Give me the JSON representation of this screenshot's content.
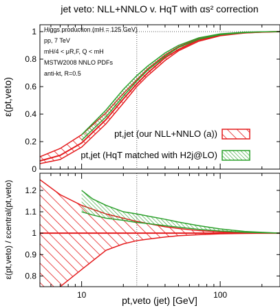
{
  "chart_data": [
    {
      "type": "area",
      "title": "jet veto: NLL+NNLO v. HqT with αs² correction",
      "ylabel": "ε(pt,veto)",
      "xscale": "log",
      "xlim": [
        5,
        270
      ],
      "ylim": [
        0,
        1.05
      ],
      "yticks": [
        "0",
        "0.2",
        "0.4",
        "0.6",
        "0.8",
        "1"
      ],
      "grid": "dotted reference lines at x = 25 GeV and y = 1",
      "annotations": [
        "Higgs production (mH = 125 GeV)",
        "pp, 7 TeV",
        "mH/4 < μR,F, Q < mH",
        "MSTW2008 NNLO PDFs",
        "anti-kt, R=0.5"
      ],
      "legend_position": "bottom-right",
      "series": [
        {
          "name": "pt,jet (our NLL+NNLO (a))",
          "color": "#e41a1c",
          "style": "red hatched band",
          "x": [
            5,
            7,
            10,
            15,
            20,
            25,
            30,
            40,
            50,
            70,
            100,
            150,
            200,
            270
          ],
          "central": [
            0.06,
            0.1,
            0.19,
            0.36,
            0.51,
            0.62,
            0.7,
            0.81,
            0.87,
            0.94,
            0.975,
            0.992,
            0.997,
            1.0
          ],
          "lower": [
            0.04,
            0.07,
            0.16,
            0.33,
            0.48,
            0.6,
            0.68,
            0.79,
            0.86,
            0.93,
            0.97,
            0.99,
            0.996,
            1.0
          ],
          "upper": [
            0.09,
            0.15,
            0.25,
            0.41,
            0.55,
            0.65,
            0.73,
            0.83,
            0.89,
            0.95,
            0.98,
            0.994,
            0.998,
            1.0
          ]
        },
        {
          "name": "pt,jet (HqT matched with H2j@LO)",
          "color": "#2ca02c",
          "style": "green hatched band",
          "x": [
            10,
            15,
            20,
            25,
            30,
            40,
            50,
            70,
            100,
            150,
            200,
            270
          ],
          "lower": [
            0.21,
            0.38,
            0.53,
            0.64,
            0.72,
            0.82,
            0.885,
            0.945,
            0.978,
            0.993,
            0.998,
            1.0
          ],
          "upper": [
            0.25,
            0.43,
            0.58,
            0.68,
            0.75,
            0.845,
            0.9,
            0.955,
            0.984,
            0.996,
            0.999,
            1.0
          ]
        }
      ]
    },
    {
      "type": "area",
      "xlabel": "pt,veto (jet) [GeV]",
      "ylabel": "ε(pt,veto) / εcentral(pt,veto)",
      "xscale": "log",
      "xlim": [
        5,
        270
      ],
      "ylim": [
        0.75,
        1.28
      ],
      "xticks": [
        "10",
        "100"
      ],
      "yticks": [
        "0.8",
        "0.9",
        "1",
        "1.1",
        "1.2"
      ],
      "grid": "dotted reference lines at x = 25 GeV and y = 1",
      "series": [
        {
          "name": "pt,jet (our NLL+NNLO (a))",
          "color": "#e41a1c",
          "style": "red hatched band",
          "x": [
            5,
            7,
            10,
            15,
            20,
            25,
            30,
            40,
            50,
            70,
            100,
            150,
            200,
            270
          ],
          "central": [
            1,
            1,
            1,
            1,
            1,
            1,
            1,
            1,
            1,
            1,
            1,
            1,
            1,
            1
          ],
          "lower": [
            0.65,
            0.75,
            0.83,
            0.92,
            0.95,
            0.965,
            0.972,
            0.982,
            0.988,
            0.993,
            0.997,
            0.999,
            1.0,
            1.0
          ],
          "upper": [
            1.25,
            1.18,
            1.13,
            1.09,
            1.07,
            1.055,
            1.045,
            1.03,
            1.022,
            1.012,
            1.006,
            1.002,
            1.001,
            1.0
          ]
        },
        {
          "name": "pt,jet (HqT matched with H2j@LO)",
          "color": "#2ca02c",
          "style": "green hatched band",
          "x": [
            10,
            12,
            15,
            20,
            25,
            30,
            40,
            50,
            70,
            100,
            150,
            200,
            270
          ],
          "lower": [
            1.1,
            1.085,
            1.07,
            1.06,
            1.05,
            1.045,
            1.035,
            1.028,
            1.018,
            1.01,
            1.004,
            1.002,
            1.0
          ],
          "upper": [
            1.2,
            1.16,
            1.13,
            1.1,
            1.09,
            1.08,
            1.065,
            1.052,
            1.035,
            1.02,
            1.008,
            1.004,
            1.0
          ]
        }
      ]
    }
  ]
}
